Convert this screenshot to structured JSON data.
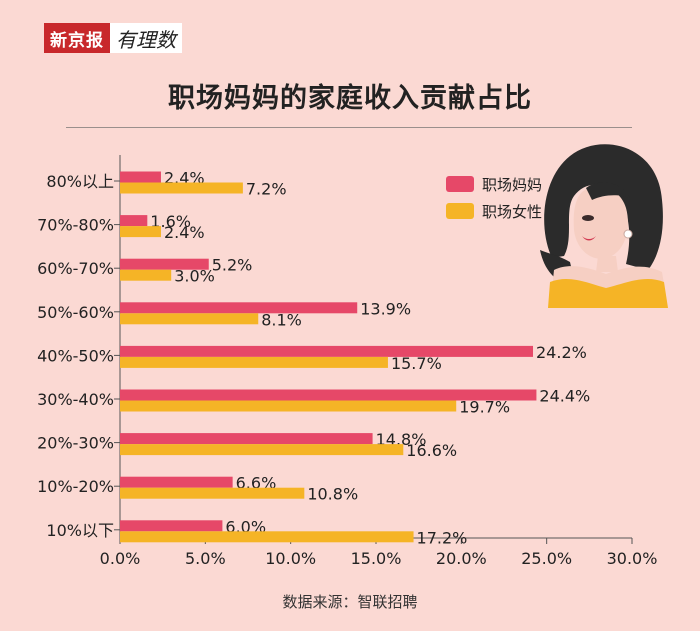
{
  "brand": {
    "name": "新京报",
    "column": "有理数"
  },
  "title": "职场妈妈的家庭收入贡献占比",
  "source": "数据来源：智联招聘",
  "colors": {
    "mom": "#e64868",
    "women": "#f5b426",
    "figure_hair": "#2b2b2b",
    "figure_skin": "#f6cfc3",
    "figure_shirt": "#f5b426"
  },
  "chart_data": {
    "type": "bar",
    "orientation": "horizontal",
    "categories": [
      "80%以上",
      "70%-80%",
      "60%-70%",
      "50%-60%",
      "40%-50%",
      "30%-40%",
      "20%-30%",
      "10%-20%",
      "10%以下"
    ],
    "series": [
      {
        "name": "职场妈妈",
        "values": [
          2.4,
          1.6,
          5.2,
          13.9,
          24.2,
          24.4,
          14.8,
          6.6,
          6.0
        ],
        "labels": [
          "2.4%",
          "1.6%",
          "5.2%",
          "13.9%",
          "24.2%",
          "24.4%",
          "14.8%",
          "6.6%",
          "6.0%"
        ]
      },
      {
        "name": "职场女性",
        "values": [
          7.2,
          2.4,
          3.0,
          8.1,
          15.7,
          19.7,
          16.6,
          10.8,
          17.2
        ],
        "labels": [
          "7.2%",
          "2.4%",
          "3.0%",
          "8.1%",
          "15.7%",
          "19.7%",
          "16.6%",
          "10.8%",
          "17.2%"
        ]
      }
    ],
    "xlim": [
      0,
      30
    ],
    "xticks": [
      "0.0%",
      "5.0%",
      "10.0%",
      "15.0%",
      "20.0%",
      "25.0%",
      "30.0%"
    ],
    "xtick_values": [
      0,
      5,
      10,
      15,
      20,
      25,
      30
    ],
    "legend": "top-right",
    "grid": false
  }
}
